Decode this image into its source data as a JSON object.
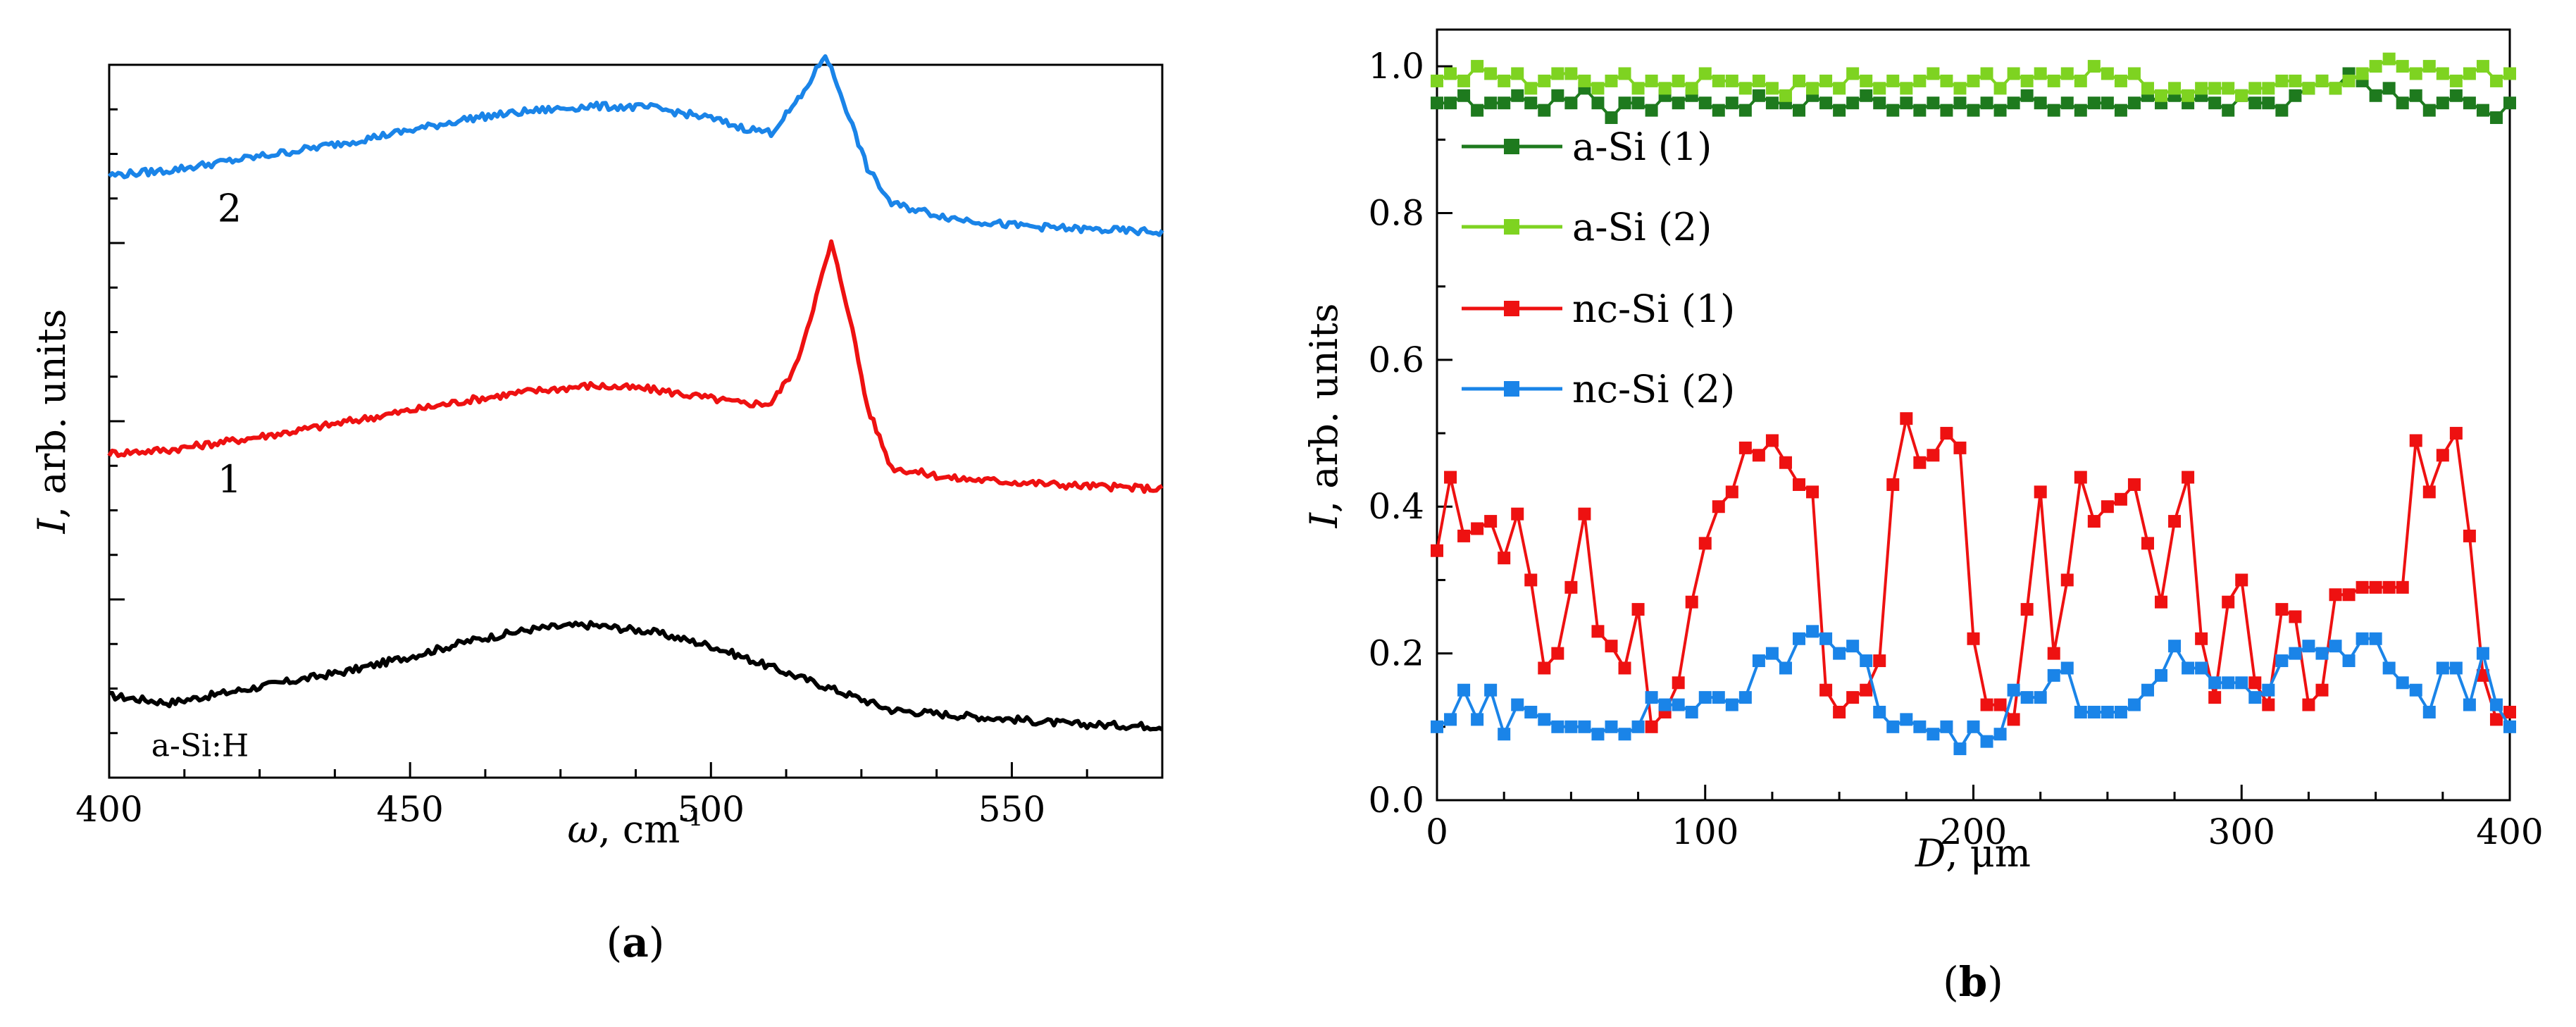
{
  "chart_data": [
    {
      "panel": "(a)",
      "panel_label_prefix": "(",
      "panel_label_letter": "a",
      "panel_label_suffix": ")",
      "type": "line",
      "title": "",
      "xlabel": {
        "symbol": "ω",
        "rest": ", cm",
        "superscript": "-1"
      },
      "ylabel": {
        "symbol": "I",
        "rest": ", arb. units"
      },
      "xlim": [
        400,
        575
      ],
      "ylim": [
        0,
        10
      ],
      "xticks": [
        400,
        450,
        500,
        550
      ],
      "yticks_unlabeled": true,
      "grid": false,
      "series": [
        {
          "name": "a-Si:H",
          "label": "a-Si:H",
          "color": "#000000",
          "label_x": 407,
          "label_y": 0.3,
          "x": [
            400,
            410,
            420,
            430,
            440,
            450,
            460,
            470,
            475,
            480,
            490,
            500,
            510,
            520,
            530,
            540,
            550,
            560,
            575
          ],
          "y": [
            1.15,
            1.05,
            1.2,
            1.35,
            1.5,
            1.7,
            1.92,
            2.08,
            2.12,
            2.14,
            2.05,
            1.85,
            1.55,
            1.25,
            0.95,
            0.88,
            0.82,
            0.75,
            0.72
          ]
        },
        {
          "name": "1",
          "label": "1",
          "color": "#ee1111",
          "label_x": 418,
          "label_y": 4.0,
          "x": [
            400,
            410,
            420,
            430,
            440,
            450,
            460,
            470,
            480,
            490,
            500,
            505,
            510,
            514,
            517,
            520,
            523,
            526,
            530,
            540,
            550,
            560,
            575
          ],
          "y": [
            4.55,
            4.6,
            4.72,
            4.85,
            5.0,
            5.15,
            5.3,
            5.42,
            5.5,
            5.45,
            5.32,
            5.25,
            5.25,
            5.75,
            6.6,
            7.5,
            6.5,
            5.2,
            4.35,
            4.2,
            4.15,
            4.1,
            4.05
          ]
        },
        {
          "name": "2",
          "label": "2",
          "color": "#1a84e8",
          "label_x": 418,
          "label_y": 7.8,
          "x": [
            400,
            410,
            420,
            430,
            440,
            450,
            460,
            470,
            480,
            490,
            500,
            505,
            510,
            515,
            519,
            522,
            526,
            530,
            540,
            550,
            560,
            575
          ],
          "y": [
            8.45,
            8.52,
            8.65,
            8.78,
            8.92,
            9.08,
            9.25,
            9.35,
            9.42,
            9.4,
            9.25,
            9.12,
            9.05,
            9.55,
            10.15,
            9.5,
            8.55,
            8.05,
            7.85,
            7.75,
            7.7,
            7.65
          ]
        }
      ]
    },
    {
      "panel": "(b)",
      "panel_label_prefix": "(",
      "panel_label_letter": "b",
      "panel_label_suffix": ")",
      "type": "line",
      "title": "",
      "xlabel": {
        "symbol": "D",
        "rest": ", μm"
      },
      "ylabel": {
        "symbol": "I",
        "rest": ", arb. units"
      },
      "xlim": [
        0,
        400
      ],
      "ylim": [
        0.0,
        1.05
      ],
      "xticks": [
        0,
        100,
        200,
        300,
        400
      ],
      "yticks": [
        0.0,
        0.2,
        0.4,
        0.6,
        0.8,
        1.0
      ],
      "ytick_labels": [
        "0.0",
        "0.2",
        "0.4",
        "0.6",
        "0.8",
        "1.0"
      ],
      "grid": false,
      "legend_position": "upper-left",
      "x": [
        0,
        5,
        10,
        15,
        20,
        25,
        30,
        35,
        40,
        45,
        50,
        55,
        60,
        65,
        70,
        75,
        80,
        85,
        90,
        95,
        100,
        105,
        110,
        115,
        120,
        125,
        130,
        135,
        140,
        145,
        150,
        155,
        160,
        165,
        170,
        175,
        180,
        185,
        190,
        195,
        200,
        205,
        210,
        215,
        220,
        225,
        230,
        235,
        240,
        245,
        250,
        255,
        260,
        265,
        270,
        275,
        280,
        285,
        290,
        295,
        300,
        305,
        310,
        315,
        320,
        325,
        330,
        335,
        340,
        345,
        350,
        355,
        360,
        365,
        370,
        375,
        380,
        385,
        390,
        395,
        400
      ],
      "series": [
        {
          "name": "a-Si (1)",
          "color": "#1e7a1e",
          "y": [
            0.95,
            0.95,
            0.96,
            0.94,
            0.95,
            0.95,
            0.96,
            0.95,
            0.94,
            0.96,
            0.95,
            0.97,
            0.95,
            0.93,
            0.95,
            0.95,
            0.94,
            0.96,
            0.95,
            0.96,
            0.95,
            0.94,
            0.95,
            0.94,
            0.96,
            0.95,
            0.95,
            0.94,
            0.96,
            0.95,
            0.94,
            0.95,
            0.96,
            0.95,
            0.94,
            0.95,
            0.94,
            0.95,
            0.94,
            0.95,
            0.94,
            0.95,
            0.94,
            0.95,
            0.96,
            0.95,
            0.94,
            0.95,
            0.94,
            0.95,
            0.95,
            0.94,
            0.95,
            0.96,
            0.95,
            0.96,
            0.95,
            0.96,
            0.95,
            0.94,
            0.96,
            0.95,
            0.95,
            0.94,
            0.96,
            0.97,
            0.98,
            0.97,
            0.99,
            0.98,
            0.96,
            0.97,
            0.95,
            0.96,
            0.94,
            0.95,
            0.96,
            0.95,
            0.94,
            0.93,
            0.95
          ]
        },
        {
          "name": "a-Si (2)",
          "color": "#7ed321",
          "y": [
            0.98,
            0.99,
            0.98,
            1.0,
            0.99,
            0.98,
            0.99,
            0.97,
            0.98,
            0.99,
            0.99,
            0.98,
            0.97,
            0.98,
            0.99,
            0.97,
            0.98,
            0.97,
            0.98,
            0.97,
            0.99,
            0.98,
            0.98,
            0.97,
            0.98,
            0.97,
            0.96,
            0.98,
            0.97,
            0.98,
            0.97,
            0.99,
            0.98,
            0.97,
            0.98,
            0.97,
            0.98,
            0.99,
            0.98,
            0.97,
            0.98,
            0.99,
            0.97,
            0.99,
            0.98,
            0.99,
            0.98,
            0.99,
            0.98,
            1.0,
            0.99,
            0.98,
            0.99,
            0.97,
            0.96,
            0.97,
            0.96,
            0.97,
            0.97,
            0.97,
            0.96,
            0.97,
            0.97,
            0.98,
            0.98,
            0.97,
            0.98,
            0.97,
            0.98,
            0.99,
            1.0,
            1.01,
            1.0,
            0.99,
            1.0,
            0.99,
            0.98,
            0.99,
            1.0,
            0.98,
            0.99
          ]
        },
        {
          "name": "nc-Si (1)",
          "color": "#ee1111",
          "y": [
            0.34,
            0.44,
            0.36,
            0.37,
            0.38,
            0.33,
            0.39,
            0.3,
            0.18,
            0.2,
            0.29,
            0.39,
            0.23,
            0.21,
            0.18,
            0.26,
            0.1,
            0.12,
            0.16,
            0.27,
            0.35,
            0.4,
            0.42,
            0.48,
            0.47,
            0.49,
            0.46,
            0.43,
            0.42,
            0.15,
            0.12,
            0.14,
            0.15,
            0.19,
            0.43,
            0.52,
            0.46,
            0.47,
            0.5,
            0.48,
            0.22,
            0.13,
            0.13,
            0.11,
            0.26,
            0.42,
            0.2,
            0.3,
            0.44,
            0.38,
            0.4,
            0.41,
            0.43,
            0.35,
            0.27,
            0.38,
            0.44,
            0.22,
            0.14,
            0.27,
            0.3,
            0.16,
            0.13,
            0.26,
            0.25,
            0.13,
            0.15,
            0.28,
            0.28,
            0.29,
            0.29,
            0.29,
            0.29,
            0.49,
            0.42,
            0.47,
            0.5,
            0.36,
            0.17,
            0.11,
            0.12
          ]
        },
        {
          "name": "nc-Si (2)",
          "color": "#1a84e8",
          "y": [
            0.1,
            0.11,
            0.15,
            0.11,
            0.15,
            0.09,
            0.13,
            0.12,
            0.11,
            0.1,
            0.1,
            0.1,
            0.09,
            0.1,
            0.09,
            0.1,
            0.14,
            0.13,
            0.13,
            0.12,
            0.14,
            0.14,
            0.13,
            0.14,
            0.19,
            0.2,
            0.18,
            0.22,
            0.23,
            0.22,
            0.2,
            0.21,
            0.19,
            0.12,
            0.1,
            0.11,
            0.1,
            0.09,
            0.1,
            0.07,
            0.1,
            0.08,
            0.09,
            0.15,
            0.14,
            0.14,
            0.17,
            0.18,
            0.12,
            0.12,
            0.12,
            0.12,
            0.13,
            0.15,
            0.17,
            0.21,
            0.18,
            0.18,
            0.16,
            0.16,
            0.16,
            0.14,
            0.15,
            0.19,
            0.2,
            0.21,
            0.2,
            0.21,
            0.19,
            0.22,
            0.22,
            0.18,
            0.16,
            0.15,
            0.12,
            0.18,
            0.18,
            0.13,
            0.2,
            0.13,
            0.1
          ]
        }
      ]
    }
  ]
}
